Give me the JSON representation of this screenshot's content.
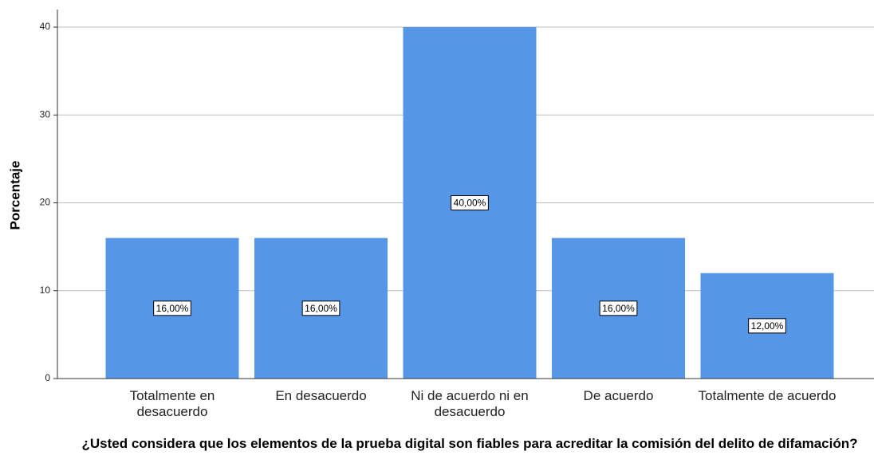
{
  "chart_data": {
    "type": "bar",
    "x_label": "¿Usted considera que los elementos de la prueba digital son fiables para acreditar la comisión del delito de difamación?",
    "y_label": "Porcentaje",
    "categories": [
      "Totalmente en desacuerdo",
      "En desacuerdo",
      "Ni de acuerdo ni en desacuerdo",
      "De acuerdo",
      "Totalmente de acuerdo"
    ],
    "values": [
      16,
      16,
      40,
      16,
      12
    ],
    "value_labels": [
      "16,00%",
      "16,00%",
      "40,00%",
      "16,00%",
      "12,00%"
    ],
    "color": "#5596e6",
    "ylim": [
      0,
      42
    ],
    "yticks": [
      0,
      10,
      20,
      30,
      40
    ],
    "grid": true
  }
}
